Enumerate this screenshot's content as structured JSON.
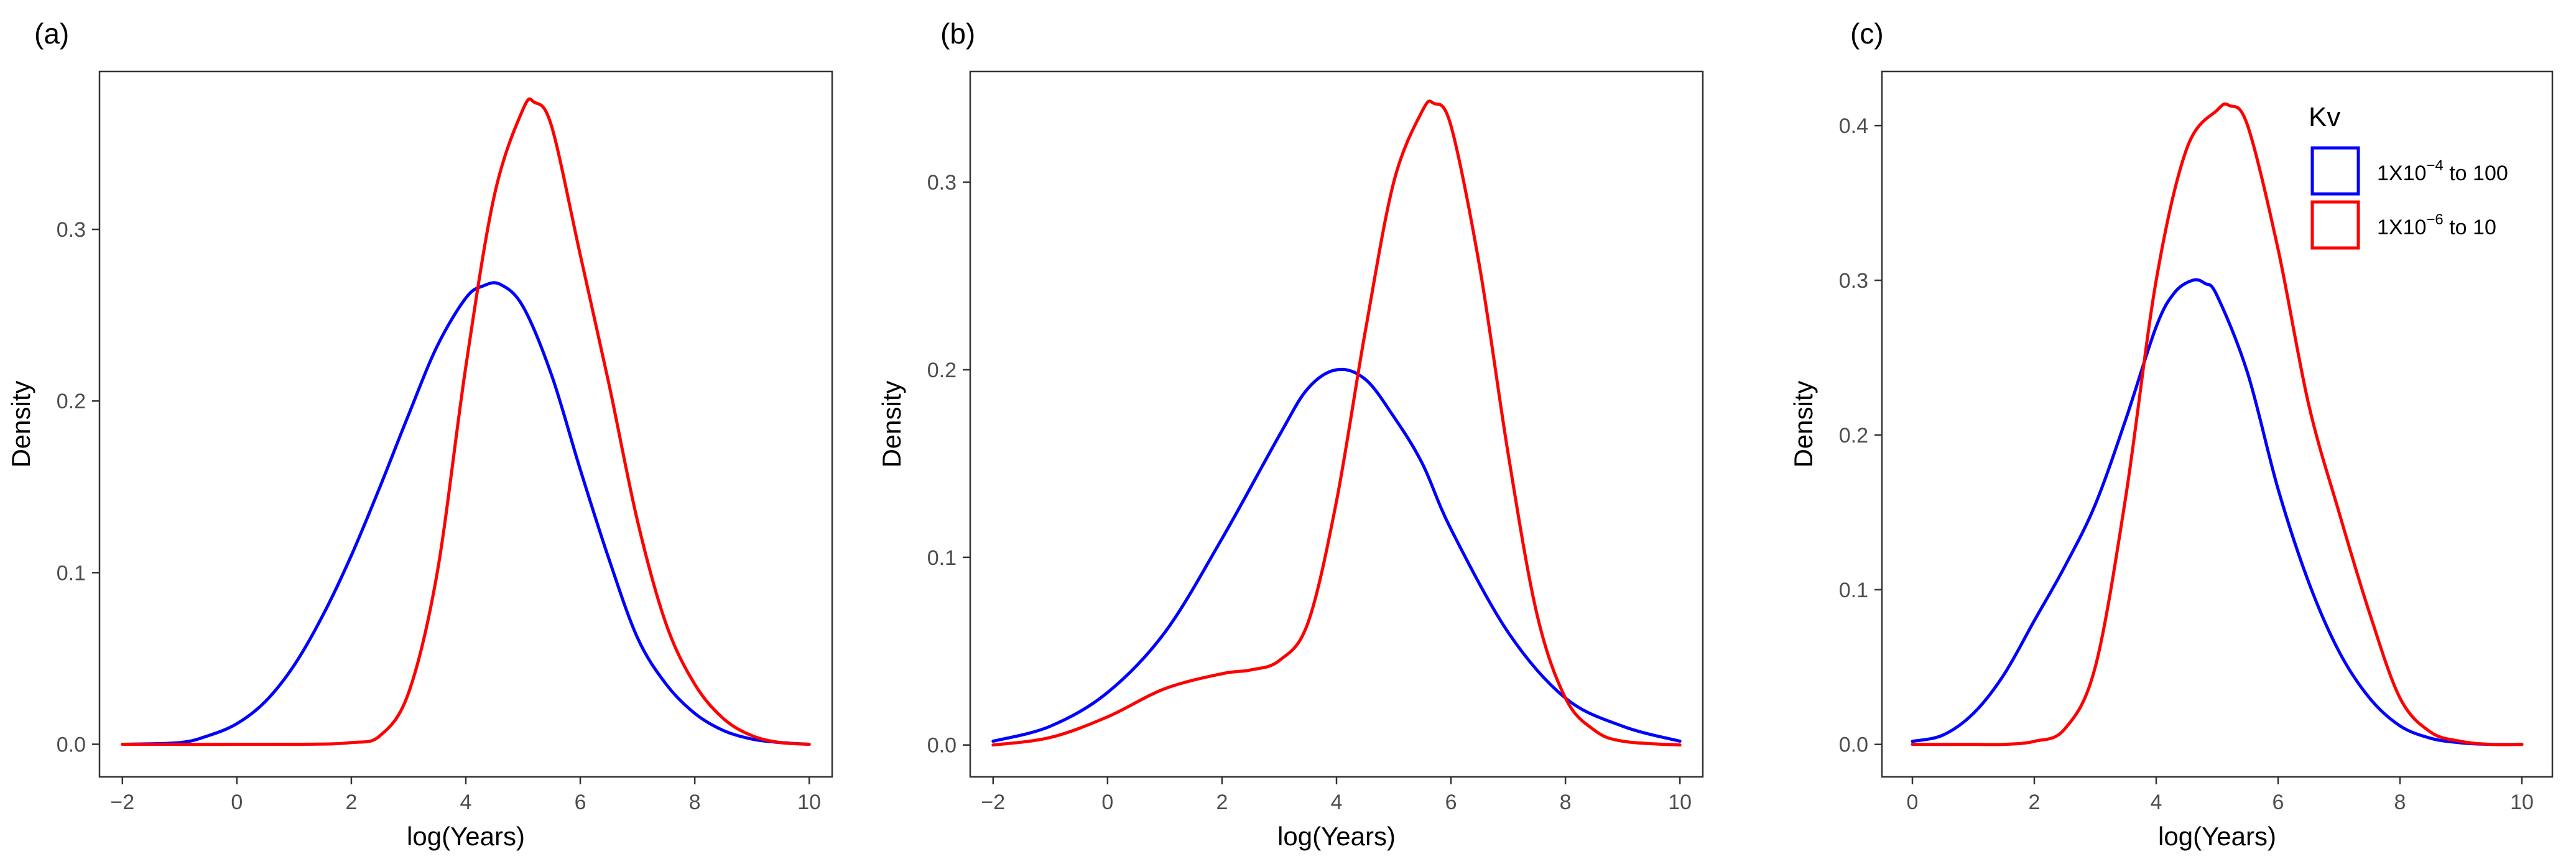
{
  "chart_data": [
    {
      "type": "line",
      "panel_label": "(a)",
      "title": "",
      "xlabel": "log(Years)",
      "ylabel": "Density",
      "xlim": [
        -2.4,
        10.4
      ],
      "ylim": [
        -0.019,
        0.392
      ],
      "xticks": [
        -2,
        0,
        2,
        4,
        6,
        8,
        10
      ],
      "yticks": [
        0.0,
        0.1,
        0.2,
        0.3
      ],
      "ytick_labels": [
        "0.0",
        "0.1",
        "0.2",
        "0.3"
      ],
      "grid": false,
      "series": [
        {
          "name": "1X10^-4 to 100",
          "color": "#0000ff",
          "x": [
            -2,
            -1,
            -0.5,
            0,
            0.5,
            1,
            1.5,
            2,
            2.5,
            3,
            3.5,
            4,
            4.3,
            4.6,
            5,
            5.5,
            6,
            6.5,
            7,
            7.5,
            8,
            8.5,
            9,
            9.5,
            10
          ],
          "y": [
            0.0,
            0.001,
            0.005,
            0.012,
            0.025,
            0.046,
            0.075,
            0.11,
            0.15,
            0.192,
            0.232,
            0.26,
            0.267,
            0.268,
            0.255,
            0.215,
            0.16,
            0.108,
            0.062,
            0.035,
            0.018,
            0.008,
            0.003,
            0.001,
            0.0
          ]
        },
        {
          "name": "1X10^-6 to 10",
          "color": "#ff0000",
          "x": [
            -2,
            1,
            2,
            2.5,
            3,
            3.5,
            4,
            4.5,
            5,
            5.2,
            5.5,
            6,
            6.5,
            7,
            7.5,
            8,
            8.5,
            9,
            9.5,
            10
          ],
          "y": [
            0.0,
            0.0,
            0.001,
            0.005,
            0.03,
            0.1,
            0.22,
            0.32,
            0.37,
            0.374,
            0.36,
            0.285,
            0.21,
            0.13,
            0.07,
            0.035,
            0.015,
            0.005,
            0.001,
            0.0
          ]
        }
      ]
    },
    {
      "type": "line",
      "panel_label": "(b)",
      "title": "",
      "xlabel": "log(Years)",
      "ylabel": "Density",
      "xlim": [
        -2.4,
        10.4
      ],
      "ylim": [
        -0.017,
        0.359
      ],
      "xticks": [
        -2,
        0,
        2,
        4,
        6,
        8,
        10
      ],
      "yticks": [
        0.0,
        0.1,
        0.2,
        0.3
      ],
      "ytick_labels": [
        "0.0",
        "0.1",
        "0.2",
        "0.3"
      ],
      "grid": false,
      "series": [
        {
          "name": "1X10^-4 to 100",
          "color": "#0000ff",
          "x": [
            -2,
            -1,
            0,
            1,
            2,
            3,
            3.5,
            4,
            4.5,
            5,
            5.5,
            6,
            7,
            8,
            9,
            10
          ],
          "y": [
            0.002,
            0.01,
            0.028,
            0.06,
            0.11,
            0.165,
            0.19,
            0.2,
            0.195,
            0.175,
            0.15,
            0.115,
            0.06,
            0.025,
            0.01,
            0.002
          ]
        },
        {
          "name": "1X10^-6 to 10",
          "color": "#ff0000",
          "x": [
            -2,
            -1,
            0,
            1,
            2,
            2.5,
            3,
            3.5,
            4,
            4.5,
            5,
            5.5,
            5.7,
            6,
            6.5,
            7,
            7.5,
            8,
            8.5,
            9,
            10
          ],
          "y": [
            0.0,
            0.004,
            0.015,
            0.03,
            0.038,
            0.04,
            0.045,
            0.065,
            0.13,
            0.22,
            0.3,
            0.338,
            0.342,
            0.33,
            0.255,
            0.155,
            0.07,
            0.025,
            0.008,
            0.002,
            0.0
          ]
        }
      ]
    },
    {
      "type": "line",
      "panel_label": "(c)",
      "title": "",
      "xlabel": "log(Years)",
      "ylabel": "Density",
      "xlim": [
        -0.5,
        10.5
      ],
      "ylim": [
        -0.021,
        0.435
      ],
      "xticks": [
        0,
        2,
        4,
        6,
        8,
        10
      ],
      "yticks": [
        0.0,
        0.1,
        0.2,
        0.3,
        0.4
      ],
      "ytick_labels": [
        "0.0",
        "0.1",
        "0.2",
        "0.3",
        "0.4"
      ],
      "grid": false,
      "legend": {
        "title": "Kv",
        "position": "top-right",
        "entries": [
          {
            "base": "1X10",
            "exp": "−4",
            "suffix": " to 100",
            "color": "#0000ff"
          },
          {
            "base": "1X10",
            "exp": "−6",
            "suffix": " to 10",
            "color": "#ff0000"
          }
        ]
      },
      "series": [
        {
          "name": "1X10^-4 to 100",
          "color": "#0000ff",
          "x": [
            0,
            0.5,
            1,
            1.5,
            2,
            2.5,
            3,
            3.5,
            4,
            4.3,
            4.6,
            4.8,
            5,
            5.5,
            6,
            6.5,
            7,
            7.5,
            8,
            8.5,
            9,
            9.5,
            10
          ],
          "y": [
            0.002,
            0.006,
            0.02,
            0.045,
            0.08,
            0.115,
            0.155,
            0.21,
            0.27,
            0.292,
            0.3,
            0.298,
            0.29,
            0.24,
            0.165,
            0.105,
            0.06,
            0.03,
            0.012,
            0.004,
            0.001,
            0.0,
            0.0
          ]
        },
        {
          "name": "1X10^-6 to 10",
          "color": "#ff0000",
          "x": [
            0,
            1,
            1.5,
            2,
            2.5,
            3,
            3.5,
            4,
            4.5,
            5,
            5.2,
            5.5,
            6,
            6.5,
            7,
            7.5,
            8,
            8.5,
            9,
            9.5,
            10
          ],
          "y": [
            0.0,
            0.0,
            0.0,
            0.002,
            0.01,
            0.05,
            0.16,
            0.3,
            0.385,
            0.41,
            0.413,
            0.4,
            0.32,
            0.22,
            0.15,
            0.085,
            0.03,
            0.008,
            0.002,
            0.0,
            0.0
          ]
        }
      ]
    }
  ]
}
